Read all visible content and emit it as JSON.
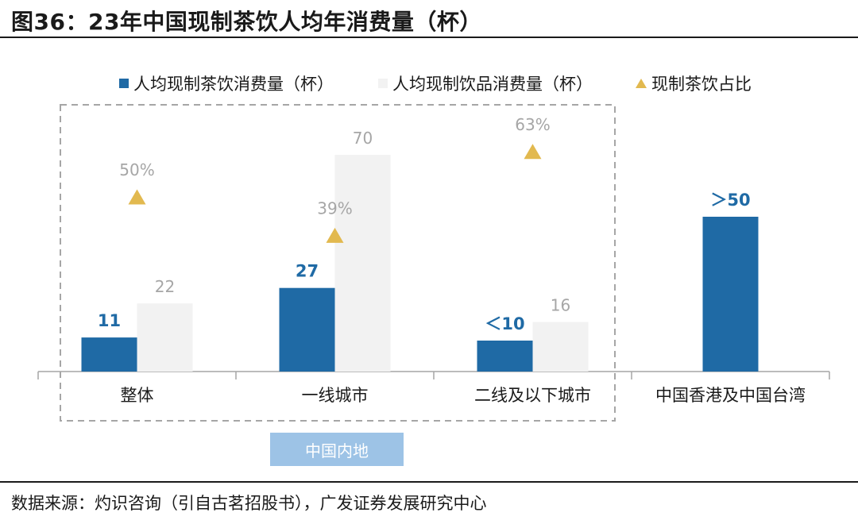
{
  "title": "图36：23年中国现制茶饮人均年消费量（杯）",
  "source": "数据来源：灼识咨询（引自古茗招股书），广发证券发展研究中心",
  "region_label": "中国内地",
  "colors": {
    "tea": "#1f6aa5",
    "drink": "#f2f2f2",
    "share": "#e2b94f",
    "tea_label": "#1f6aa5",
    "gray_label": "#a6a6a6"
  },
  "chart_data": {
    "type": "bar",
    "categories": [
      "整体",
      "一线城市",
      "二线及以下城市",
      "中国香港及中国台湾"
    ],
    "series": [
      {
        "name": "人均现制茶饮消费量（杯）",
        "values": [
          11,
          27,
          10,
          50
        ],
        "labels": [
          "11",
          "27",
          "＜10",
          "＞50"
        ]
      },
      {
        "name": "人均现制饮品消费量（杯）",
        "values": [
          22,
          70,
          16,
          null
        ],
        "labels": [
          "22",
          "70",
          "16",
          ""
        ]
      },
      {
        "name": "现制茶饮占比",
        "values": [
          50,
          39,
          63,
          null
        ],
        "labels": [
          "50%",
          "39%",
          "63%",
          ""
        ],
        "marker": "triangle"
      }
    ],
    "ylim": [
      0,
      75
    ],
    "grid": false,
    "legend_position": "top"
  }
}
